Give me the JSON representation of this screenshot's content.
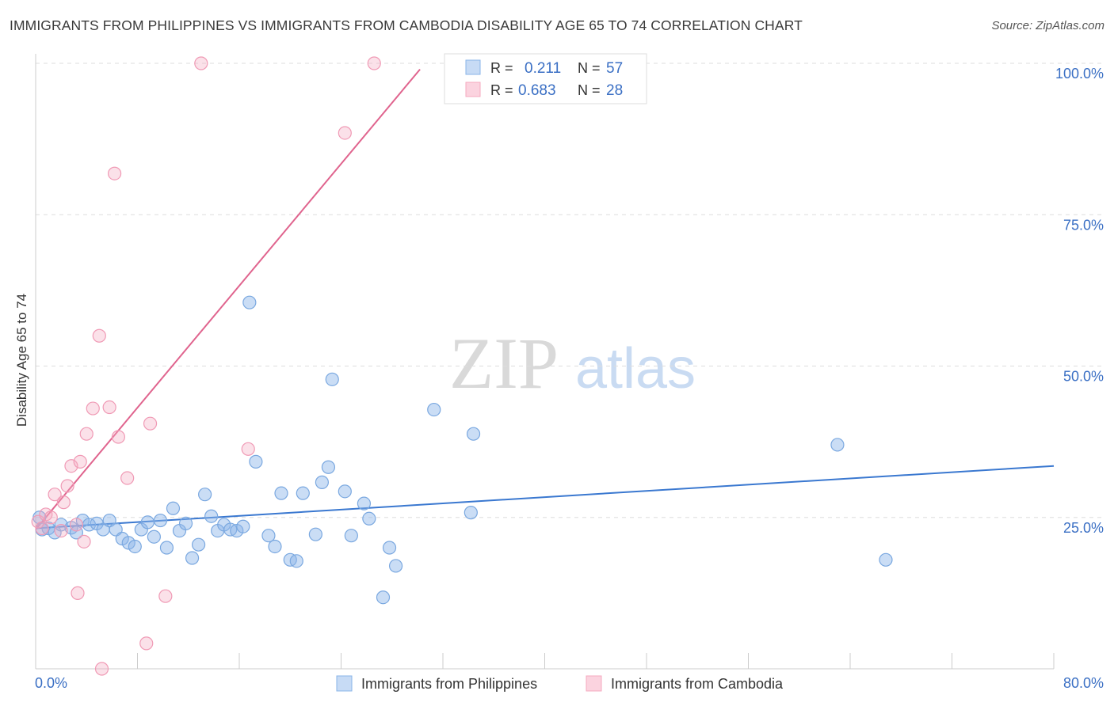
{
  "title": "IMMIGRANTS FROM PHILIPPINES VS IMMIGRANTS FROM CAMBODIA DISABILITY AGE 65 TO 74 CORRELATION CHART",
  "source": "Source: ZipAtlas.com",
  "watermark": {
    "zip": "ZIP",
    "atlas": "atlas"
  },
  "colors": {
    "blue": "#8ab4e8",
    "blue_line": "#3a78d0",
    "pink": "#f4a8bf",
    "pink_line": "#e0648e",
    "tick_text": "#3a6fc4"
  },
  "chart_data": {
    "type": "scatter",
    "title": "IMMIGRANTS FROM PHILIPPINES VS IMMIGRANTS FROM CAMBODIA DISABILITY AGE 65 TO 74 CORRELATION CHART",
    "xlabel": "",
    "ylabel": "Disability Age 65 to 74",
    "xlim": [
      0,
      80
    ],
    "ylim": [
      0,
      100
    ],
    "x_tick_labels": [
      "0.0%",
      "80.0%"
    ],
    "y_ticks": [
      25,
      50,
      75,
      100
    ],
    "y_tick_labels": [
      "25.0%",
      "50.0%",
      "75.0%",
      "100.0%"
    ],
    "legend": {
      "position": "top-center",
      "rows": [
        {
          "r_label": "R =",
          "r_value": "0.211",
          "n_label": "N =",
          "n_value": "57"
        },
        {
          "r_label": "R =",
          "r_value": "0.683",
          "n_label": "N =",
          "n_value": "28"
        }
      ]
    },
    "bottom_legend": [
      "Immigrants from Philippines",
      "Immigrants from Cambodia"
    ],
    "series": [
      {
        "name": "Immigrants from Philippines",
        "trend": {
          "x1": 0,
          "y1": 23.2,
          "x2": 80,
          "y2": 33.5
        },
        "points": [
          [
            0.3,
            25.0
          ],
          [
            0.5,
            23.0
          ],
          [
            1.0,
            23.2
          ],
          [
            1.5,
            22.5
          ],
          [
            2.0,
            23.8
          ],
          [
            2.8,
            23.3
          ],
          [
            3.2,
            22.5
          ],
          [
            3.7,
            24.5
          ],
          [
            4.2,
            23.8
          ],
          [
            4.8,
            24.0
          ],
          [
            5.3,
            23.0
          ],
          [
            5.8,
            24.5
          ],
          [
            6.3,
            23.0
          ],
          [
            6.8,
            21.5
          ],
          [
            7.3,
            20.8
          ],
          [
            7.8,
            20.2
          ],
          [
            8.3,
            23.0
          ],
          [
            8.8,
            24.2
          ],
          [
            9.3,
            21.8
          ],
          [
            9.8,
            24.5
          ],
          [
            10.3,
            20.0
          ],
          [
            10.8,
            26.5
          ],
          [
            11.3,
            22.8
          ],
          [
            11.8,
            24.0
          ],
          [
            12.3,
            18.3
          ],
          [
            12.8,
            20.5
          ],
          [
            13.3,
            28.8
          ],
          [
            13.8,
            25.2
          ],
          [
            14.3,
            22.8
          ],
          [
            14.8,
            23.8
          ],
          [
            15.3,
            23.0
          ],
          [
            15.8,
            22.8
          ],
          [
            16.3,
            23.5
          ],
          [
            16.8,
            60.5
          ],
          [
            17.3,
            34.2
          ],
          [
            18.3,
            22.0
          ],
          [
            18.8,
            20.2
          ],
          [
            19.3,
            29.0
          ],
          [
            20.0,
            18.0
          ],
          [
            20.5,
            17.8
          ],
          [
            21.0,
            29.0
          ],
          [
            22.0,
            22.2
          ],
          [
            22.5,
            30.8
          ],
          [
            23.0,
            33.3
          ],
          [
            23.3,
            47.8
          ],
          [
            24.3,
            29.3
          ],
          [
            24.8,
            22.0
          ],
          [
            25.8,
            27.3
          ],
          [
            26.2,
            24.8
          ],
          [
            27.3,
            11.8
          ],
          [
            27.8,
            20.0
          ],
          [
            28.3,
            17.0
          ],
          [
            31.3,
            42.8
          ],
          [
            34.2,
            25.8
          ],
          [
            34.4,
            38.8
          ],
          [
            63.0,
            37.0
          ],
          [
            66.8,
            18.0
          ]
        ]
      },
      {
        "name": "Immigrants from Cambodia",
        "trend": {
          "x1": 0,
          "y1": 23.0,
          "x2": 30.2,
          "y2": 99.0
        },
        "points": [
          [
            0.2,
            24.3
          ],
          [
            0.5,
            23.2
          ],
          [
            0.8,
            25.5
          ],
          [
            1.2,
            25.0
          ],
          [
            1.5,
            28.8
          ],
          [
            2.0,
            22.8
          ],
          [
            2.2,
            27.5
          ],
          [
            2.5,
            30.2
          ],
          [
            2.8,
            33.5
          ],
          [
            3.2,
            23.8
          ],
          [
            3.3,
            12.5
          ],
          [
            3.5,
            34.2
          ],
          [
            3.8,
            21.0
          ],
          [
            4.0,
            38.8
          ],
          [
            4.5,
            43.0
          ],
          [
            5.0,
            55.0
          ],
          [
            5.8,
            43.2
          ],
          [
            6.2,
            81.8
          ],
          [
            6.5,
            38.3
          ],
          [
            7.2,
            31.5
          ],
          [
            8.7,
            4.2
          ],
          [
            9.0,
            40.5
          ],
          [
            10.2,
            12.0
          ],
          [
            13.0,
            100.0
          ],
          [
            16.7,
            36.3
          ],
          [
            24.3,
            88.5
          ],
          [
            26.6,
            100.0
          ],
          [
            5.2,
            0
          ]
        ]
      }
    ]
  }
}
